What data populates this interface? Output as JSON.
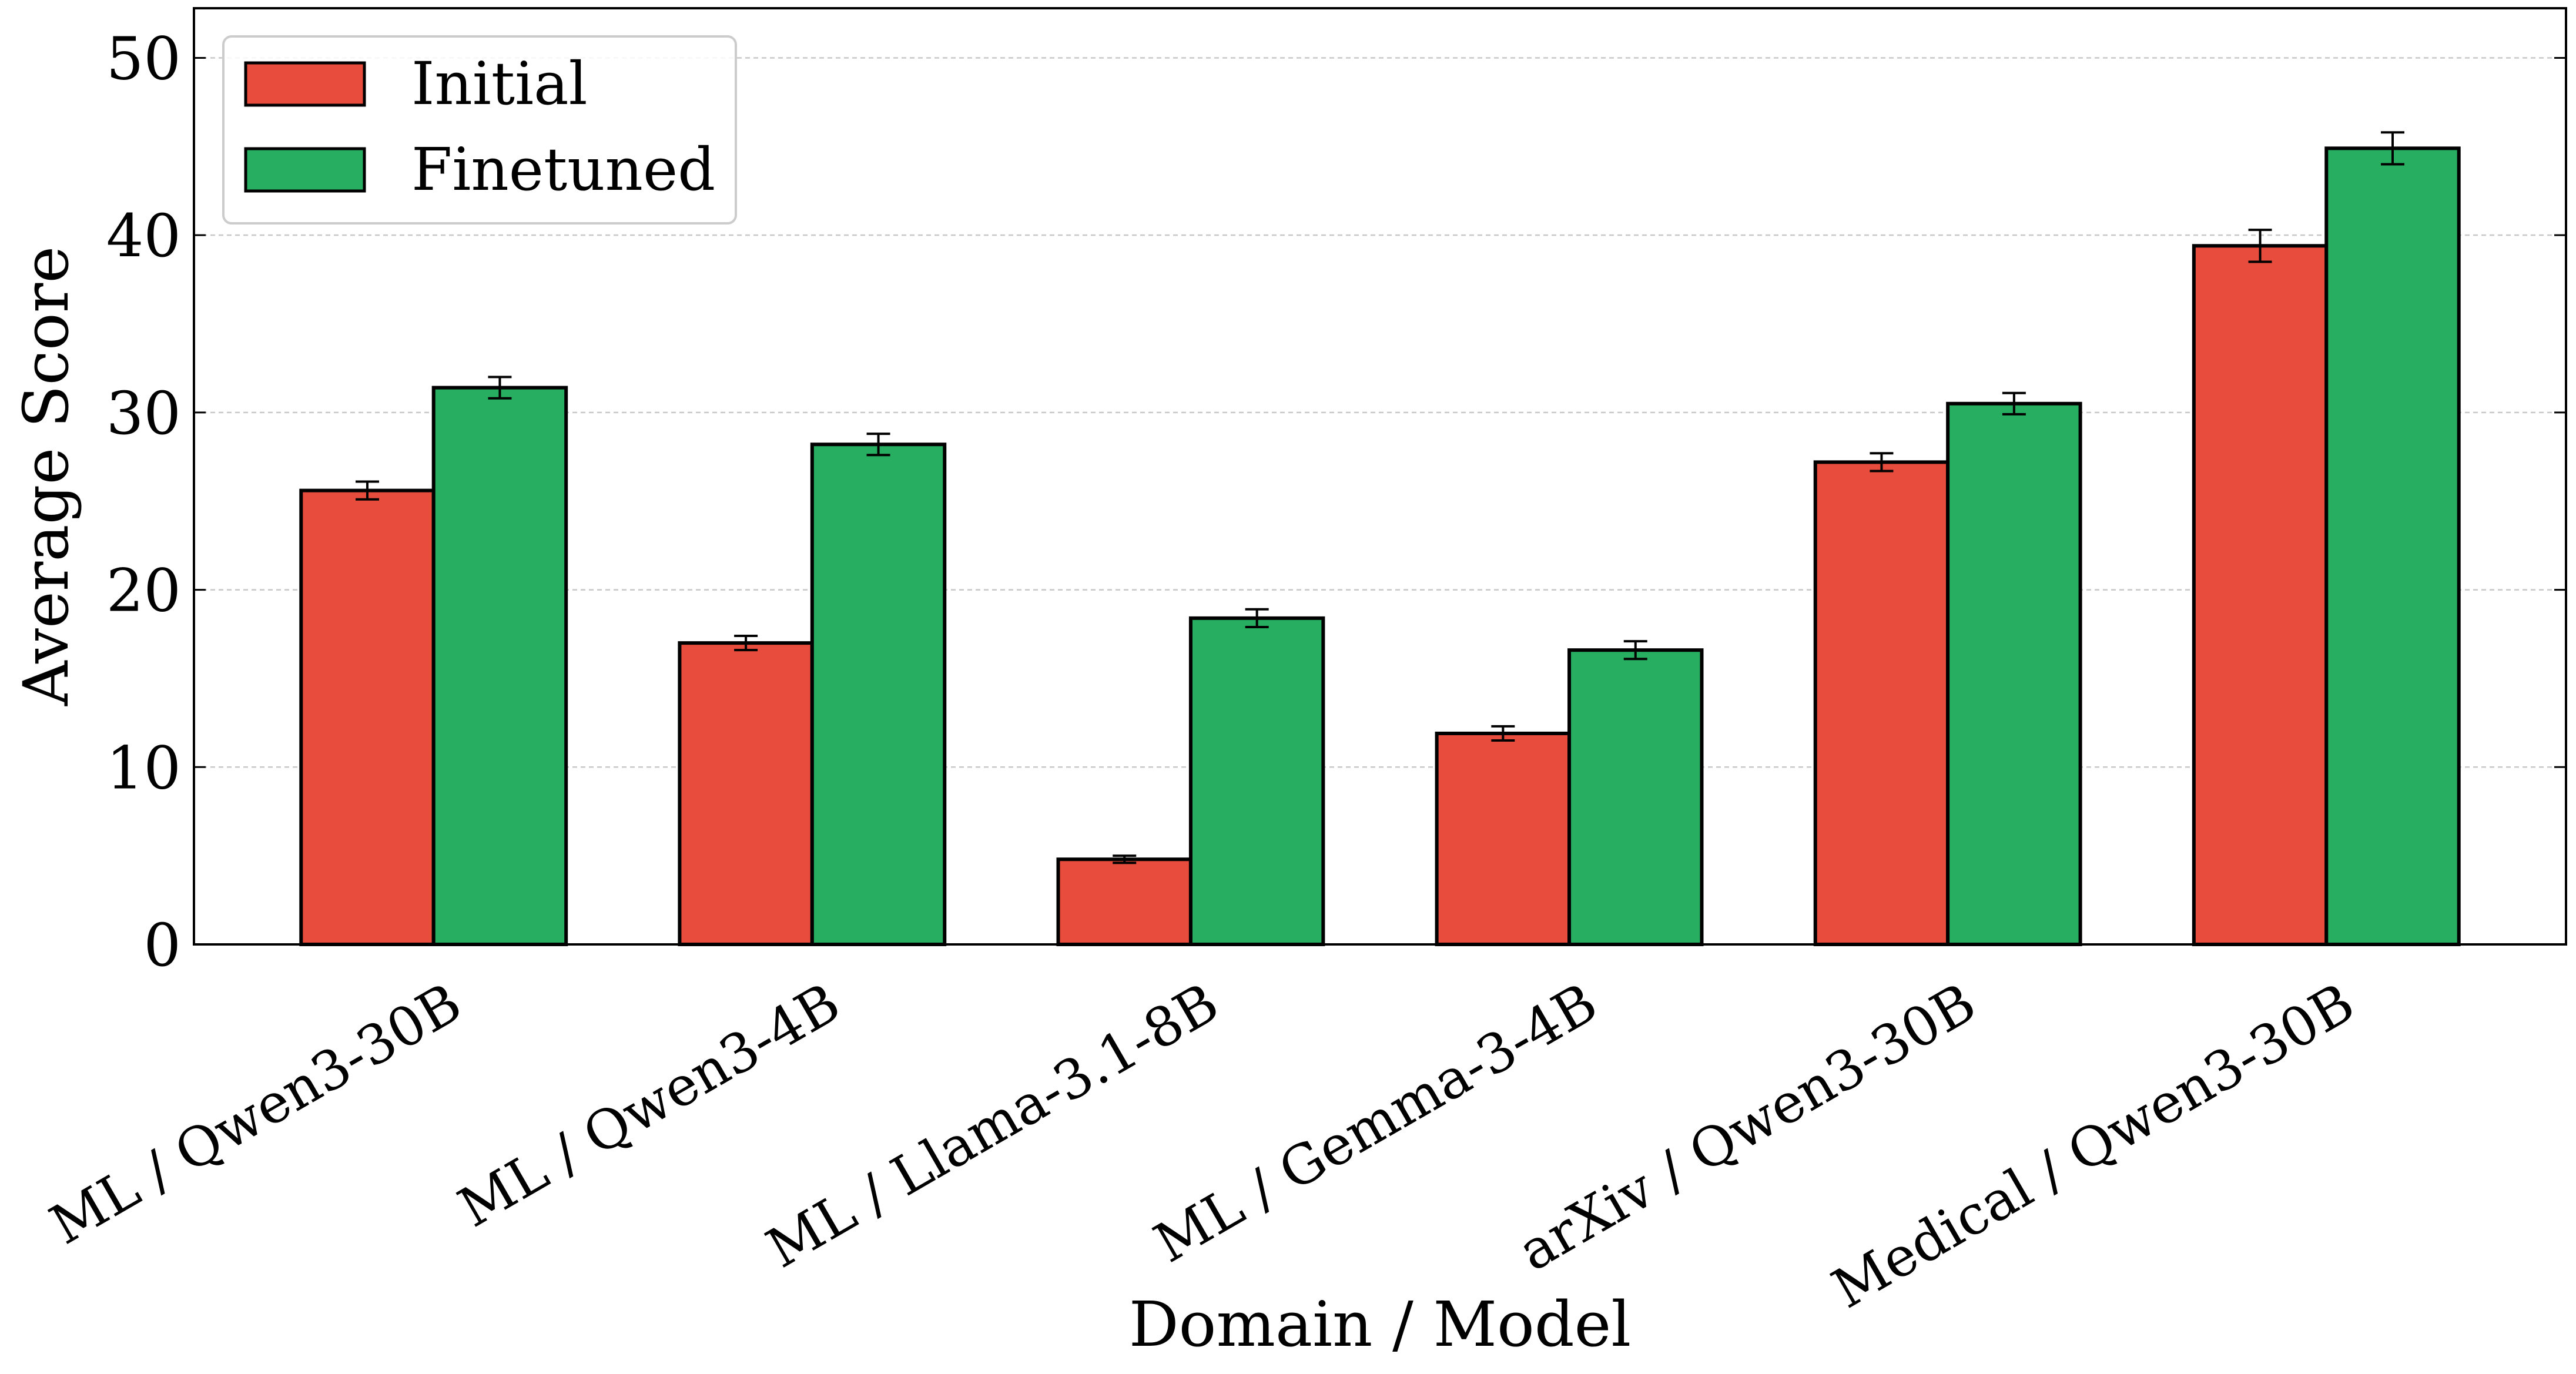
{
  "chart_data": {
    "type": "bar",
    "x_label": "Domain / Model",
    "y_label": "Average Score",
    "categories": [
      "ML / Qwen3-30B",
      "ML / Qwen3-4B",
      "ML / Llama-3.1-8B",
      "ML / Gemma-3-4B",
      "arXiv / Qwen3-30B",
      "Medical / Qwen3-30B"
    ],
    "series": [
      {
        "name": "Initial",
        "color": "#e74c3c",
        "values": [
          25.6,
          17.0,
          4.8,
          11.9,
          27.2,
          39.4
        ],
        "errors": [
          0.5,
          0.4,
          0.2,
          0.4,
          0.5,
          0.9
        ]
      },
      {
        "name": "Finetuned",
        "color": "#27ae60",
        "values": [
          31.4,
          28.2,
          18.4,
          16.6,
          30.5,
          44.9
        ],
        "errors": [
          0.6,
          0.6,
          0.5,
          0.5,
          0.6,
          0.9
        ]
      }
    ],
    "ylim": [
      0,
      52.8
    ],
    "yticks": [
      0,
      10,
      20,
      30,
      40,
      50
    ],
    "grid": true,
    "legend": "upper left"
  }
}
